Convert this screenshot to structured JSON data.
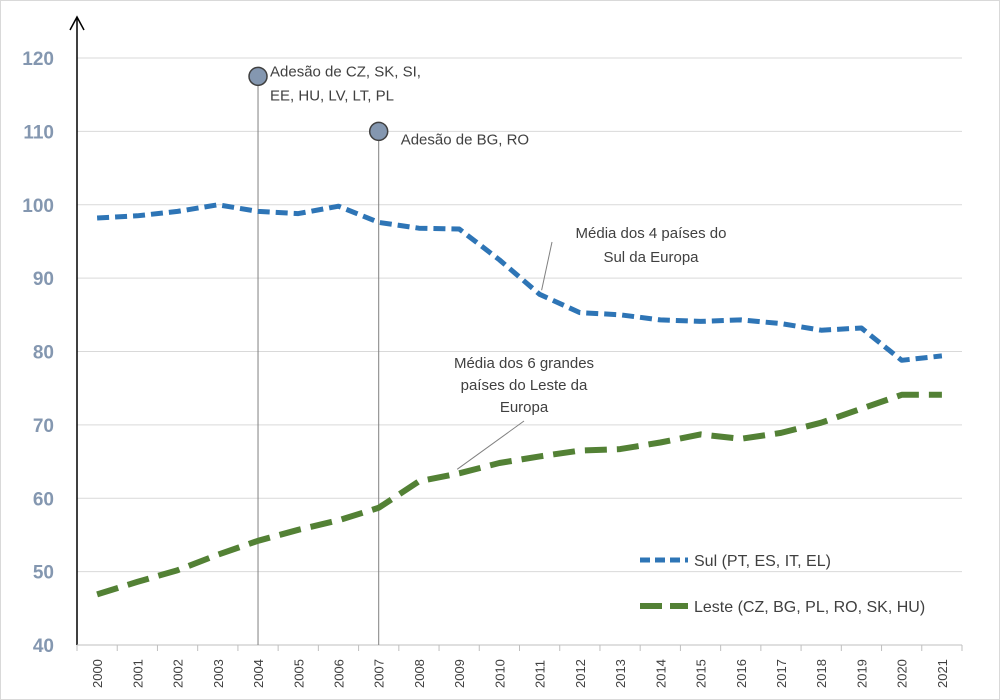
{
  "chart_data": {
    "type": "line",
    "x": [
      "2000",
      "2001",
      "2002",
      "2003",
      "2004",
      "2005",
      "2006",
      "2007",
      "2008",
      "2009",
      "2010",
      "2011",
      "2012",
      "2013",
      "2014",
      "2015",
      "2016",
      "2017",
      "2018",
      "2019",
      "2020",
      "2021"
    ],
    "ylim": [
      40,
      120
    ],
    "yticks": [
      "40",
      "50",
      "60",
      "70",
      "80",
      "90",
      "100",
      "110",
      "120"
    ],
    "grid": true,
    "legend_position": "bottom-right",
    "series": [
      {
        "name": "Sul (PT, ES, IT, EL)",
        "color": "#2e75b6",
        "style": "dashed",
        "values": [
          98.2,
          98.5,
          99.1,
          100.0,
          99.1,
          98.8,
          99.8,
          97.6,
          96.8,
          96.7,
          92.5,
          87.8,
          85.3,
          85.0,
          84.3,
          84.1,
          84.3,
          83.8,
          82.9,
          83.2,
          78.8,
          79.4
        ]
      },
      {
        "name": "Leste (CZ, BG, PL, RO, SK, HU)",
        "color": "#538135",
        "style": "dashed",
        "values": [
          46.9,
          48.6,
          50.2,
          52.3,
          54.2,
          55.7,
          57.0,
          58.7,
          62.3,
          63.4,
          64.8,
          65.7,
          66.5,
          66.7,
          67.6,
          68.7,
          68.1,
          68.9,
          70.3,
          72.2,
          74.1,
          74.1
        ]
      }
    ],
    "events": [
      {
        "year": "2004",
        "marker_y": 117.5,
        "label_lines": [
          "Adesão de CZ, SK, SI,",
          "EE, HU, LV, LT, PL"
        ]
      },
      {
        "year": "2007",
        "marker_y": 110.0,
        "label_lines": [
          "Adesão de BG, RO"
        ]
      }
    ],
    "annotations": [
      {
        "lines": [
          "Média dos 4 países do",
          "Sul da Europa"
        ],
        "x": "2011",
        "y": 87.8
      },
      {
        "lines": [
          "Média dos 6 grandes",
          "países do Leste da",
          "Europa"
        ],
        "x": "2009",
        "y": 63.4
      }
    ]
  }
}
